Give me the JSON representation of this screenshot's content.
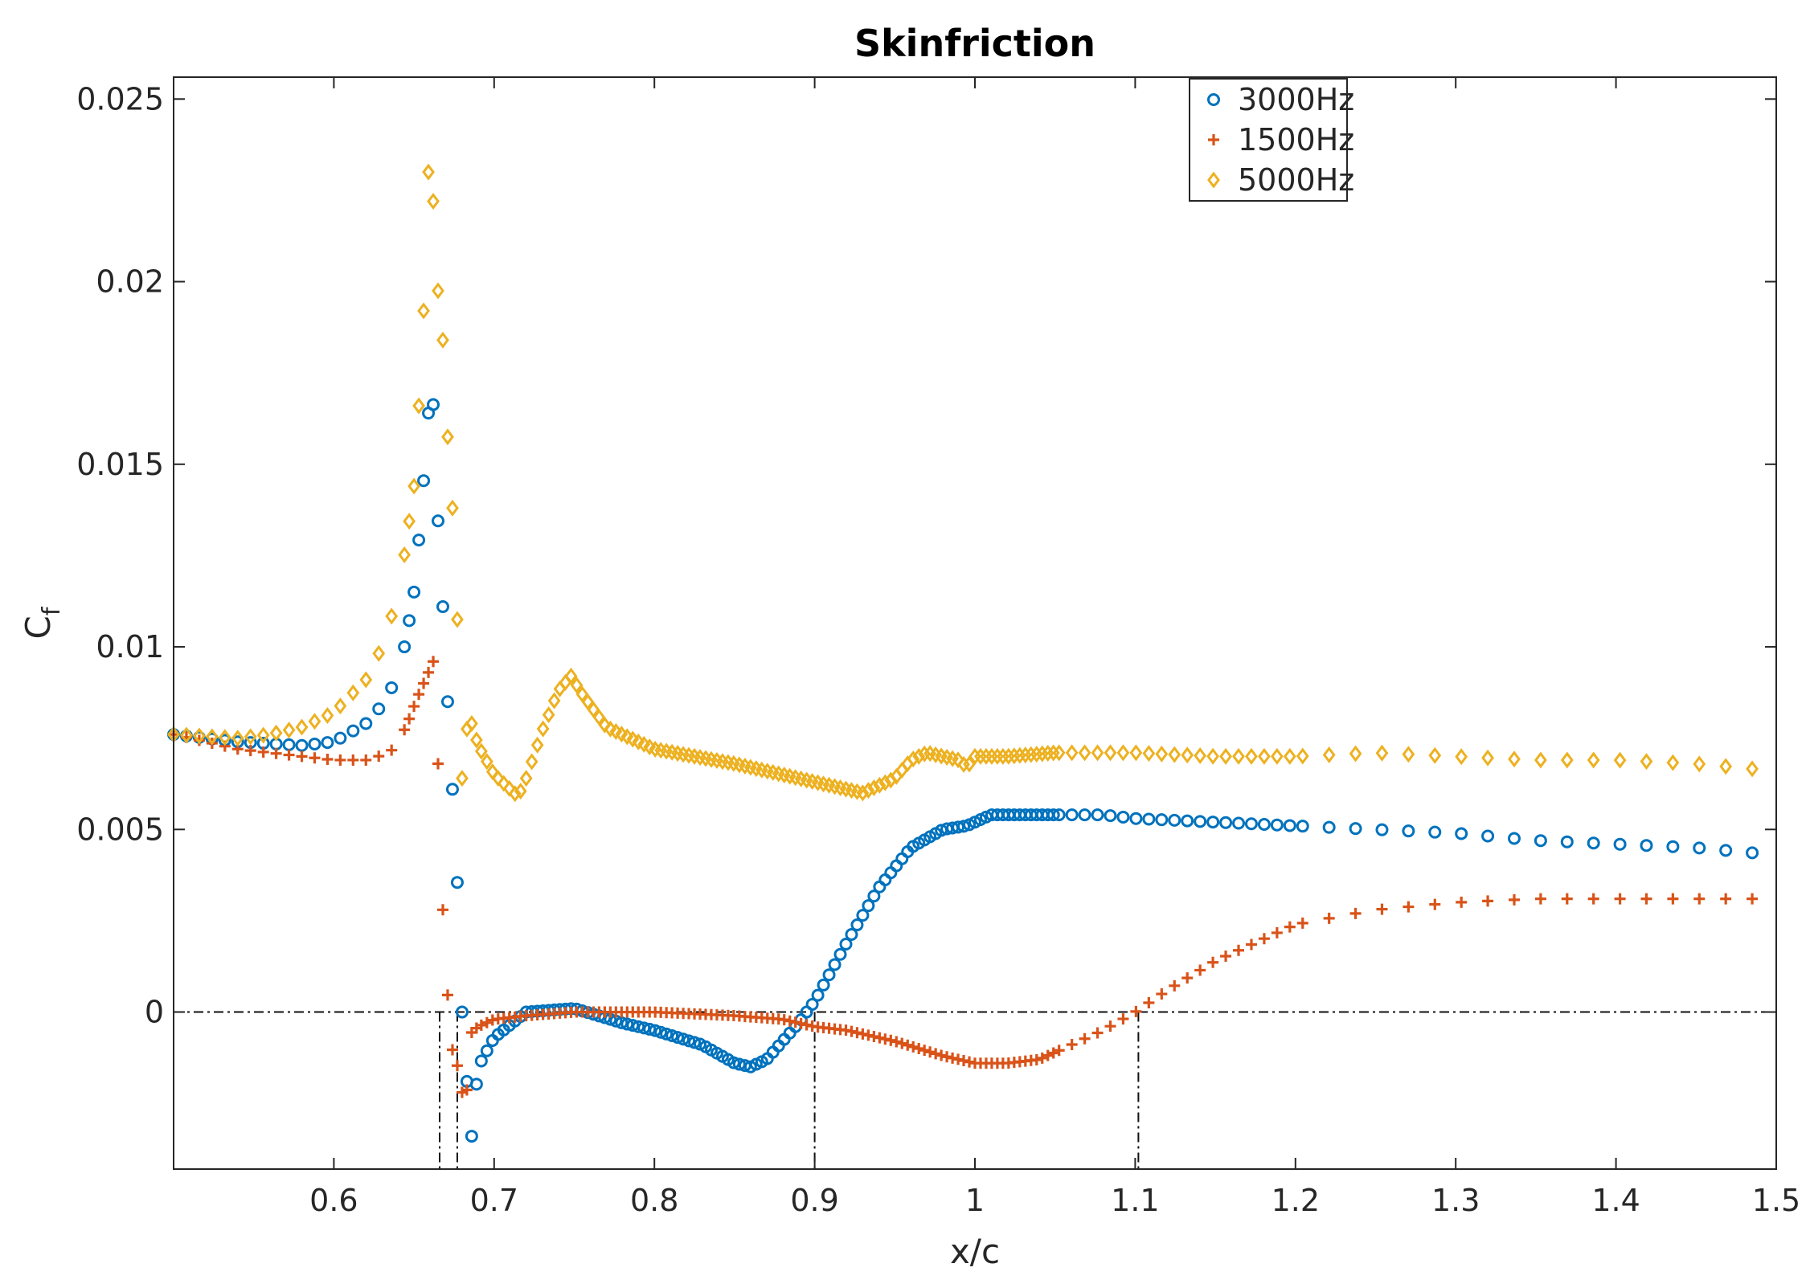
{
  "chart_data": {
    "type": "scatter",
    "title": "Skinfriction",
    "xlabel": "x/c",
    "ylabel": "C",
    "ylabel_subscript": "f",
    "xlim": [
      0.5,
      1.5
    ],
    "ylim": [
      -0.0043,
      0.0256
    ],
    "x_ticks": [
      0.6,
      0.7,
      0.8,
      0.9,
      1.0,
      1.1,
      1.2,
      1.3,
      1.4,
      1.5
    ],
    "x_tick_labels": [
      "0.6",
      "0.7",
      "0.8",
      "0.9",
      "1",
      "1.1",
      "1.2",
      "1.3",
      "1.4",
      "1.5"
    ],
    "y_ticks": [
      0,
      0.005,
      0.01,
      0.015,
      0.02,
      0.025
    ],
    "y_tick_labels": [
      "0",
      "0.005",
      "0.01",
      "0.015",
      "0.02",
      "0.025"
    ],
    "grid": false,
    "box": true,
    "legend_position": "top-right",
    "reference_lines": {
      "horizontal_y": 0,
      "vertical_x": [
        0.666,
        0.677,
        0.9,
        1.102
      ],
      "style": "dash-dot"
    },
    "series": [
      {
        "name": "3000Hz",
        "marker": "circle",
        "color": "#0072BD",
        "x_start": 0.5,
        "x_end": 1.5,
        "points_x": [
          0.5,
          0.54,
          0.58,
          0.6,
          0.62,
          0.63,
          0.64,
          0.645,
          0.65,
          0.654,
          0.658,
          0.661,
          0.664,
          0.666,
          0.668,
          0.67,
          0.672,
          0.674,
          0.676,
          0.678,
          0.68,
          0.683,
          0.686,
          0.69,
          0.7,
          0.72,
          0.75,
          0.78,
          0.8,
          0.83,
          0.85,
          0.86,
          0.87,
          0.88,
          0.89,
          0.9,
          0.92,
          0.94,
          0.96,
          0.98,
          0.995,
          1.0,
          1.01,
          1.05,
          1.08,
          1.1,
          1.15,
          1.2,
          1.25,
          1.3,
          1.35,
          1.4,
          1.45,
          1.5
        ],
        "points_y": [
          0.0076,
          0.0074,
          0.0073,
          0.0074,
          0.0079,
          0.0084,
          0.0092,
          0.0102,
          0.0115,
          0.0134,
          0.0157,
          0.0178,
          0.0143,
          0.0126,
          0.0111,
          0.0096,
          0.0074,
          0.0061,
          0.0041,
          0.003,
          0.0,
          -0.0019,
          -0.0034,
          -0.0015,
          -0.0007,
          0.0,
          0.0001,
          -0.0003,
          -0.0005,
          -0.0009,
          -0.0014,
          -0.0015,
          -0.0013,
          -0.0008,
          -0.0003,
          0.0003,
          0.0019,
          0.0034,
          0.0045,
          0.005,
          0.0051,
          0.0052,
          0.0054,
          0.0054,
          0.0054,
          0.0053,
          0.0052,
          0.0051,
          0.005,
          0.0049,
          0.0047,
          0.0046,
          0.0045,
          0.0043
        ]
      },
      {
        "name": "1500Hz",
        "marker": "plus",
        "color": "#D95319",
        "x_start": 0.5,
        "x_end": 1.5,
        "points_x": [
          0.5,
          0.54,
          0.58,
          0.6,
          0.62,
          0.635,
          0.645,
          0.652,
          0.658,
          0.662,
          0.665,
          0.667,
          0.669,
          0.672,
          0.675,
          0.678,
          0.682,
          0.685,
          0.69,
          0.7,
          0.72,
          0.75,
          0.8,
          0.85,
          0.88,
          0.9,
          0.92,
          0.95,
          0.98,
          1.0,
          1.02,
          1.04,
          1.06,
          1.08,
          1.1,
          1.12,
          1.15,
          1.18,
          1.2,
          1.25,
          1.3,
          1.35,
          1.4,
          1.45,
          1.5
        ],
        "points_y": [
          0.0076,
          0.0072,
          0.007,
          0.0069,
          0.0069,
          0.0071,
          0.0078,
          0.0086,
          0.0092,
          0.0096,
          0.0068,
          0.0036,
          0.002,
          -0.0003,
          -0.0014,
          -0.0015,
          -0.0029,
          -0.0006,
          -0.0004,
          -0.0002,
          -0.0001,
          0.0,
          0.0,
          -0.0001,
          -0.0002,
          -0.0004,
          -0.0005,
          -0.0008,
          -0.0012,
          -0.0014,
          -0.0014,
          -0.0013,
          -0.0009,
          -0.0005,
          0.0,
          0.0006,
          0.0014,
          0.002,
          0.0024,
          0.0028,
          0.003,
          0.0031,
          0.0031,
          0.0031,
          0.0031
        ]
      },
      {
        "name": "5000Hz",
        "marker": "diamond",
        "color": "#EDB120",
        "x_start": 0.5,
        "x_end": 1.5,
        "points_x": [
          0.5,
          0.54,
          0.56,
          0.58,
          0.6,
          0.62,
          0.63,
          0.64,
          0.645,
          0.65,
          0.653,
          0.656,
          0.659,
          0.662,
          0.664,
          0.666,
          0.668,
          0.67,
          0.672,
          0.674,
          0.676,
          0.678,
          0.68,
          0.684,
          0.69,
          0.7,
          0.71,
          0.715,
          0.72,
          0.73,
          0.74,
          0.748,
          0.755,
          0.77,
          0.8,
          0.85,
          0.9,
          0.93,
          0.95,
          0.96,
          0.97,
          0.98,
          0.99,
          0.995,
          1.0,
          1.02,
          1.05,
          1.1,
          1.15,
          1.2,
          1.25,
          1.3,
          1.35,
          1.4,
          1.45,
          1.5
        ],
        "points_y": [
          0.0076,
          0.0075,
          0.0076,
          0.0078,
          0.0082,
          0.0091,
          0.01,
          0.0114,
          0.0128,
          0.0144,
          0.0166,
          0.0192,
          0.023,
          0.0222,
          0.0206,
          0.0189,
          0.0184,
          0.0159,
          0.0156,
          0.0138,
          0.0108,
          0.0107,
          0.0064,
          0.0082,
          0.0073,
          0.0065,
          0.0061,
          0.0059,
          0.0064,
          0.0077,
          0.0088,
          0.0092,
          0.0087,
          0.0078,
          0.0072,
          0.0068,
          0.0063,
          0.006,
          0.0064,
          0.0069,
          0.0071,
          0.007,
          0.0069,
          0.0067,
          0.007,
          0.007,
          0.0071,
          0.0071,
          0.007,
          0.007,
          0.0071,
          0.007,
          0.0069,
          0.0069,
          0.0068,
          0.0066
        ]
      }
    ]
  }
}
